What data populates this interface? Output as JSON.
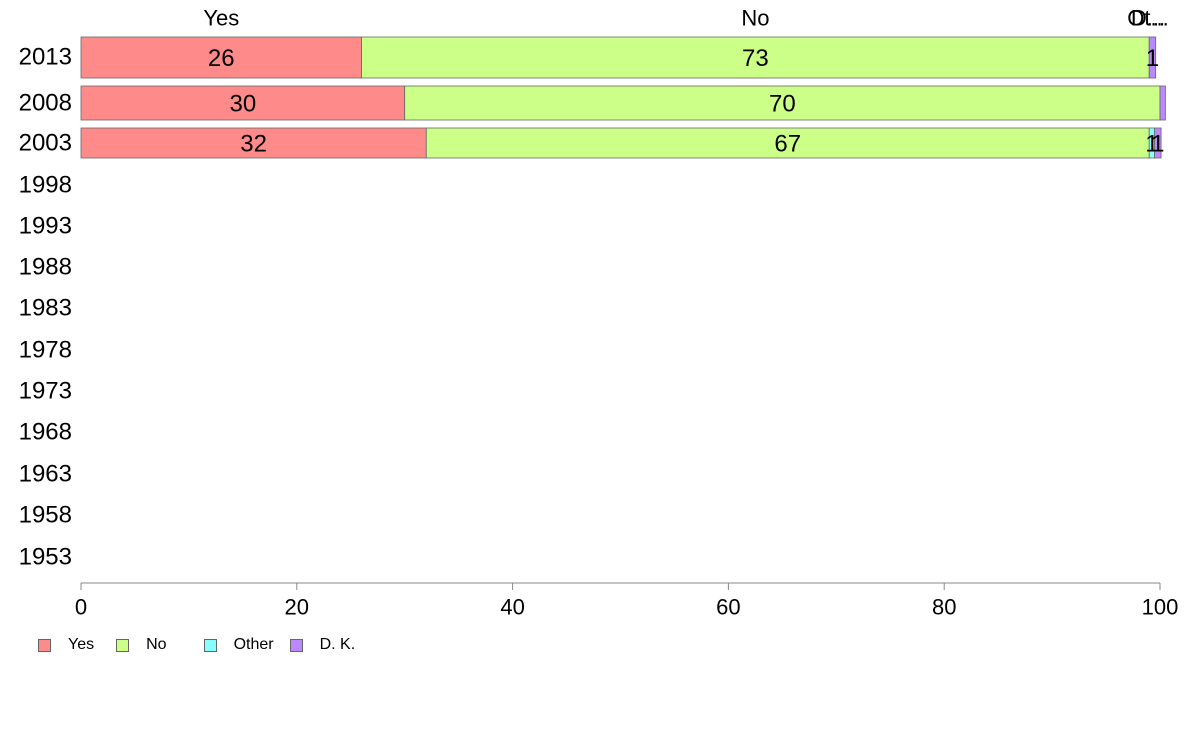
{
  "chart_data": {
    "type": "bar",
    "orientation": "horizontal",
    "stacked": true,
    "years": [
      "2013",
      "2008",
      "2003",
      "1998",
      "1993",
      "1988",
      "1983",
      "1978",
      "1973",
      "1968",
      "1963",
      "1958",
      "1953"
    ],
    "series": [
      {
        "name": "Yes",
        "color": "#ff8a8a",
        "values": [
          26,
          30,
          32,
          null,
          null,
          null,
          null,
          null,
          null,
          null,
          null,
          null,
          null
        ]
      },
      {
        "name": "No",
        "color": "#ccff88",
        "values": [
          73,
          70,
          67,
          null,
          null,
          null,
          null,
          null,
          null,
          null,
          null,
          null,
          null
        ]
      },
      {
        "name": "Other",
        "color": "#88ffff",
        "values": [
          0,
          0,
          0.5,
          null,
          null,
          null,
          null,
          null,
          null,
          null,
          null,
          null,
          null
        ]
      },
      {
        "name": "D. K.",
        "color": "#bb88ff",
        "values": [
          0.6,
          0.5,
          0.6,
          null,
          null,
          null,
          null,
          null,
          null,
          null,
          null,
          null,
          null
        ]
      }
    ],
    "bar_labels": [
      [
        "26",
        "73",
        "",
        "1"
      ],
      [
        "30",
        "70",
        "",
        ""
      ],
      [
        "32",
        "67",
        "1",
        "1"
      ]
    ],
    "top_labels": [
      "Yes",
      "No",
      "Ot...",
      "D..."
    ],
    "x_ticks": [
      "0",
      "20",
      "40",
      "60",
      "80",
      "100"
    ],
    "xlim": [
      0,
      100
    ],
    "grid": false,
    "legend_position": "bottom-left",
    "legend": [
      {
        "label": "Yes",
        "color": "#ff8a8a"
      },
      {
        "label": "No",
        "color": "#ccff88"
      },
      {
        "label": "Other",
        "color": "#88ffff"
      },
      {
        "label": "D. K.",
        "color": "#bb88ff"
      }
    ]
  }
}
